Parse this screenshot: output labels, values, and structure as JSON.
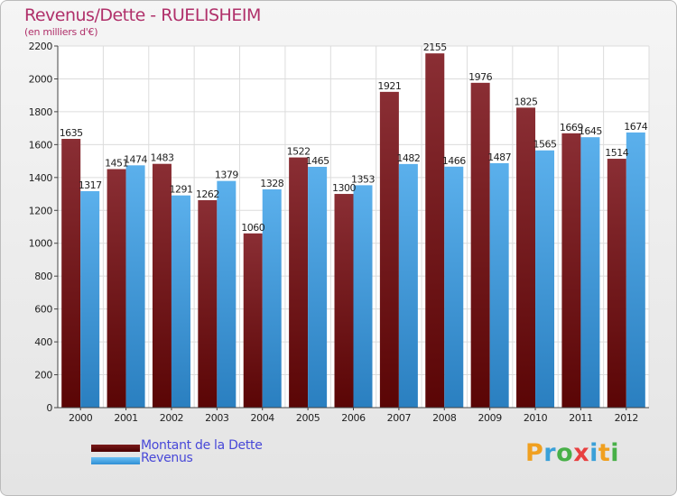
{
  "header": {
    "title": "Revenus/Dette - RUELISHEIM",
    "subtitle": "(en milliers d'€)"
  },
  "chart_data": {
    "type": "bar",
    "title": "Revenus/Dette - RUELISHEIM",
    "subtitle": "(en milliers d'€)",
    "xlabel": "",
    "ylabel": "",
    "categories": [
      "2000",
      "2001",
      "2002",
      "2003",
      "2004",
      "2005",
      "2006",
      "2007",
      "2008",
      "2009",
      "2010",
      "2011",
      "2012"
    ],
    "series": [
      {
        "name": "Montant de la Dette",
        "color": "#7a1a1a",
        "values": [
          1635,
          1451,
          1483,
          1262,
          1060,
          1522,
          1300,
          1921,
          2155,
          1976,
          1825,
          1669,
          1514
        ]
      },
      {
        "name": "Revenus",
        "color": "#3d9de0",
        "values": [
          1317,
          1474,
          1291,
          1379,
          1328,
          1465,
          1353,
          1482,
          1466,
          1487,
          1565,
          1645,
          1674
        ]
      }
    ],
    "ylim": [
      0,
      2200
    ],
    "yticks": [
      0,
      200,
      400,
      600,
      800,
      1000,
      1200,
      1400,
      1600,
      1800,
      2000,
      2200
    ],
    "grid": true,
    "legend_position": "bottom-left"
  },
  "legend": {
    "items": [
      {
        "label": "Montant de la Dette",
        "color": "#6b0f0f"
      },
      {
        "label": "Revenus",
        "color": "#3d9de0"
      }
    ]
  },
  "logo": {
    "letters": [
      {
        "ch": "P",
        "color": "#f0a020"
      },
      {
        "ch": "r",
        "color": "#3aa0d8"
      },
      {
        "ch": "o",
        "color": "#48b048"
      },
      {
        "ch": "x",
        "color": "#e84040"
      },
      {
        "ch": "i",
        "color": "#3aa0d8"
      },
      {
        "ch": "t",
        "color": "#f0a020"
      },
      {
        "ch": "i",
        "color": "#48b048"
      }
    ]
  }
}
